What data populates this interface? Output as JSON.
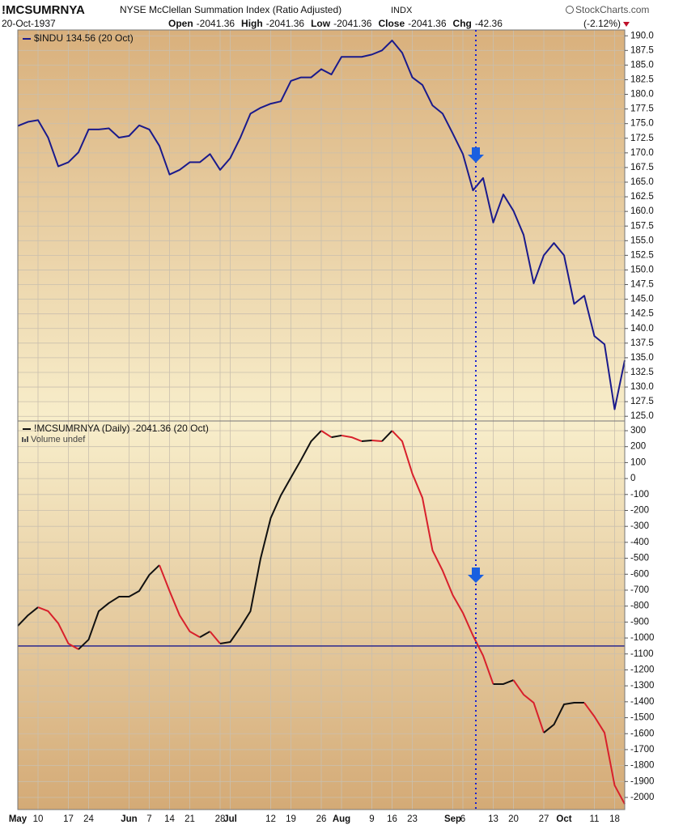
{
  "header": {
    "symbol": "!MCSUMRNYA",
    "name": "NYSE McClellan Summation Index (Ratio Adjusted)",
    "exchange": "INDX",
    "brand": "StockCharts.com",
    "date": "20-Oct-1937",
    "quote": [
      {
        "label": "Open",
        "value": -2041.36
      },
      {
        "label": "High",
        "value": -2041.36
      },
      {
        "label": "Low",
        "value": -2041.36
      },
      {
        "label": "Close",
        "value": -2041.36
      },
      {
        "label": "Chg",
        "value": -42.36
      }
    ],
    "change_pct": "(-2.12%)"
  },
  "chart_data": [
    {
      "type": "line",
      "series": [
        {
          "name": "$INDU 134.56 (20 Oct)",
          "color": "#1a1a8c",
          "values": [
            174.6,
            175.3,
            175.6,
            172.6,
            167.7,
            168.4,
            170.1,
            174.0,
            174.0,
            174.2,
            172.6,
            172.9,
            174.7,
            174.0,
            171.2,
            166.3,
            167.1,
            168.4,
            168.4,
            169.8,
            167.1,
            169.1,
            172.6,
            176.7,
            177.7,
            178.4,
            178.8,
            182.3,
            182.9,
            182.9,
            184.3,
            183.4,
            186.4,
            186.4,
            186.4,
            186.8,
            187.5,
            189.2,
            187.1,
            182.9,
            181.6,
            178.1,
            176.7,
            173.3,
            169.8,
            163.6,
            165.7,
            158.1,
            162.9,
            160.1,
            156.0,
            147.7,
            152.5,
            154.6,
            152.5,
            144.2,
            145.6,
            138.7,
            137.3,
            126.2,
            134.56
          ]
        }
      ],
      "ylim": [
        124.2,
        191.0
      ],
      "yticks": [
        {
          "value": 190,
          "label": "190.0"
        },
        {
          "value": 187.5,
          "label": "187.5"
        },
        {
          "value": 185,
          "label": "185.0"
        },
        {
          "value": 182.5,
          "label": "182.5"
        },
        {
          "value": 180,
          "label": "180.0"
        },
        {
          "value": 177.5,
          "label": "177.5"
        },
        {
          "value": 175,
          "label": "175.0"
        },
        {
          "value": 172.5,
          "label": "172.5"
        },
        {
          "value": 170,
          "label": "170.0"
        },
        {
          "value": 167.5,
          "label": "167.5"
        },
        {
          "value": 165,
          "label": "165.0"
        },
        {
          "value": 162.5,
          "label": "162.5"
        },
        {
          "value": 160,
          "label": "160.0"
        },
        {
          "value": 157.5,
          "label": "157.5"
        },
        {
          "value": 155,
          "label": "155.0"
        },
        {
          "value": 152.5,
          "label": "152.5"
        },
        {
          "value": 150,
          "label": "150.0"
        },
        {
          "value": 147.5,
          "label": "147.5"
        },
        {
          "value": 145,
          "label": "145.0"
        },
        {
          "value": 142.5,
          "label": "142.5"
        },
        {
          "value": 140,
          "label": "140.0"
        },
        {
          "value": 137.5,
          "label": "137.5"
        },
        {
          "value": 135,
          "label": "135.0"
        },
        {
          "value": 132.5,
          "label": "132.5"
        },
        {
          "value": 130,
          "label": "130.0"
        },
        {
          "value": 127.5,
          "label": "127.5"
        },
        {
          "value": 125,
          "label": "125.0"
        }
      ],
      "grid": true
    },
    {
      "type": "line",
      "categories": [
        "May",
        null,
        "10",
        null,
        null,
        "17",
        null,
        "24",
        null,
        null,
        null,
        "Jun",
        null,
        "7",
        null,
        "14",
        null,
        "21",
        null,
        null,
        "28",
        "Jul",
        null,
        null,
        null,
        "12",
        null,
        "19",
        null,
        null,
        "26",
        null,
        "Aug",
        null,
        null,
        "9",
        null,
        "16",
        null,
        "23",
        null,
        null,
        null,
        "Sep",
        "6",
        null,
        null,
        "13",
        null,
        "20",
        null,
        null,
        "27",
        null,
        "Oct",
        null,
        null,
        "11",
        null,
        "18",
        null
      ],
      "series": [
        {
          "name": "!MCSUMRNYA (Daily) -2041.36 (20 Oct)",
          "up_color": "#111111",
          "down_color": "#d8202c",
          "values": [
            -924,
            -858,
            -807,
            -832,
            -908,
            -1035,
            -1071,
            -1010,
            -832,
            -781,
            -741,
            -741,
            -705,
            -604,
            -543,
            -705,
            -858,
            -959,
            -995,
            -959,
            -1035,
            -1025,
            -934,
            -832,
            -502,
            -248,
            -106,
            6,
            117,
            234,
            300,
            259,
            270,
            259,
            234,
            239,
            234,
            300,
            234,
            31,
            -121,
            -451,
            -578,
            -731,
            -842,
            -985,
            -1111,
            -1289,
            -1289,
            -1264,
            -1355,
            -1406,
            -1594,
            -1543,
            -1416,
            -1406,
            -1406,
            -1492,
            -1594,
            -1924,
            -2041.36
          ]
        }
      ],
      "volume_note": "Volume undef",
      "reference_line": {
        "value": -1050,
        "color": "#1a1a8c"
      },
      "ylim": [
        -2076,
        361
      ],
      "yticks": [
        300,
        200,
        100,
        0,
        -100,
        -200,
        -300,
        -400,
        -500,
        -600,
        -700,
        -800,
        -900,
        -1000,
        -1100,
        -1200,
        -1300,
        -1400,
        -1500,
        -1600,
        -1700,
        -1800,
        -1900,
        -2000
      ],
      "grid": true
    }
  ]
}
